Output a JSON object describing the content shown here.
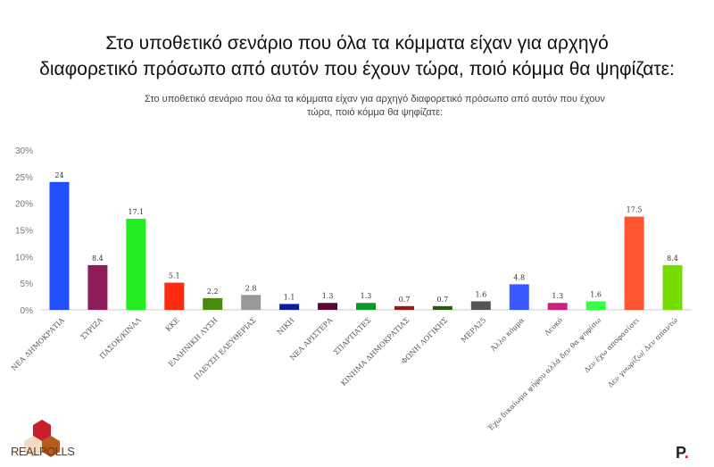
{
  "header": {
    "title_line1": "Στο υποθετικό σενάριο που όλα τα κόμματα είχαν για αρχηγό",
    "title_line2": "διαφορετικό πρόσωπο από αυτόν που έχουν τώρα, ποιό κόμμα θα ψηφίζατε:"
  },
  "chart_data": {
    "type": "bar",
    "title": "Στο υποθετικό σενάριο που όλα τα κόμματα είχαν για αρχηγό διαφορετικό πρόσωπο από αυτόν που έχουν τώρα, ποιό κόμμα θα ψηφίζατε:",
    "categories": [
      "ΝΕΑ ΔΗΜΟΚΡΑΤΙΑ",
      "ΣΥΡΙΖΑ",
      "ΠΑΣΟΚ/ΚΙΝΑΛ",
      "ΚΚΕ",
      "ΕΛΛΗΝΙΚΗ ΛΥΣΗ",
      "ΠΛΕΥΣΗ ΕΛΕΥΘΕΡΙΑΣ",
      "ΝΙΚΗ",
      "ΝΕΑ ΑΡΙΣΤΕΡΑ",
      "ΣΠΑΡΤΙΑΤΕΣ",
      "ΚΙΝΗΜΑ ΔΗΜΟΚΡΑΤΙΑΣ",
      "ΦΩΝΗ ΛΟΓΙΚΗΣ",
      "ΜΕΡΑ25",
      "Άλλο κόμμα",
      "Λευκό",
      "Έχω δικαίωμα ψήφου αλλά δεν θα ψηφίσω",
      "Δεν έχω αποφασίσει",
      "Δεν γνωρίζω/ Δεν απαντώ"
    ],
    "values": [
      24,
      8.4,
      17.1,
      5.1,
      2.2,
      2.8,
      1.1,
      1.3,
      1.3,
      0.7,
      0.7,
      1.6,
      4.8,
      1.3,
      1.6,
      17.5,
      8.4
    ],
    "value_labels": [
      "24",
      "8.4",
      "17.1",
      "5.1",
      "2.2",
      "2.8",
      "1.1",
      "1.3",
      "1.3",
      "0.7",
      "0.7",
      "1.6",
      "4.8",
      "1.3",
      "1.6",
      "17.5",
      "8.4"
    ],
    "colors": [
      "#1f4fff",
      "#8e1c5a",
      "#22ee22",
      "#ff2a10",
      "#4a8a0a",
      "#999999",
      "#0a1fa0",
      "#5a0a30",
      "#0a9a2a",
      "#9a1a10",
      "#2a5a0a",
      "#555555",
      "#3a5aff",
      "#d0207a",
      "#33ff44",
      "#ff5530",
      "#77dd00"
    ],
    "ylim": [
      0,
      30
    ],
    "yticks": [
      "0%",
      "5%",
      "10%",
      "15%",
      "20%",
      "25%",
      "30%"
    ],
    "grid": false,
    "legend": "none"
  },
  "branding": {
    "logo_left": "REALPOLLS",
    "logo_right": "P."
  }
}
